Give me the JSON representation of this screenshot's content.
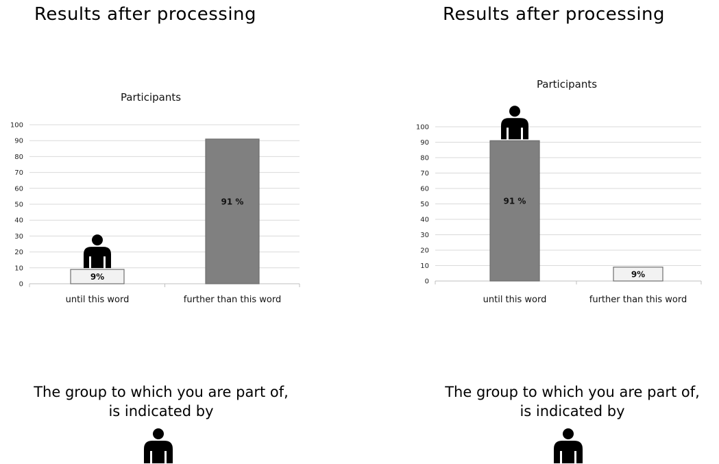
{
  "panels": [
    {
      "heading": "Results after processing",
      "note_line1": "The group to which you are part of,",
      "note_line2": "is indicated by",
      "legend_icon": "person-icon"
    },
    {
      "heading": "Results after processing",
      "note_line1": "The group to which you are part of,",
      "note_line2": "is indicated by",
      "legend_icon": "person-icon"
    }
  ],
  "colors": {
    "bar_dark": "#808080",
    "bar_light": "#f2f2f2",
    "bar_border": "#6e6e6e",
    "grid": "#d9d9d9",
    "icon": "#000000"
  },
  "chart_data": [
    {
      "type": "bar",
      "title": "Participants",
      "categories": [
        "until this word",
        "further than this word"
      ],
      "values": [
        9,
        91
      ],
      "data_labels": [
        "9%",
        "91 %"
      ],
      "bar_styles": [
        "light",
        "dark"
      ],
      "highlighted_category": "until this word",
      "ylim": [
        0,
        100
      ],
      "yticks": [
        0,
        10,
        20,
        30,
        40,
        50,
        60,
        70,
        80,
        90,
        100
      ],
      "grid": true,
      "legend": "none"
    },
    {
      "type": "bar",
      "title": "Participants",
      "categories": [
        "until this word",
        "further than this word"
      ],
      "values": [
        91,
        9
      ],
      "data_labels": [
        "91 %",
        "9%"
      ],
      "bar_styles": [
        "dark",
        "light"
      ],
      "highlighted_category": "until this word",
      "ylim": [
        0,
        100
      ],
      "yticks": [
        0,
        10,
        20,
        30,
        40,
        50,
        60,
        70,
        80,
        90,
        100
      ],
      "grid": true,
      "legend": "none"
    }
  ]
}
